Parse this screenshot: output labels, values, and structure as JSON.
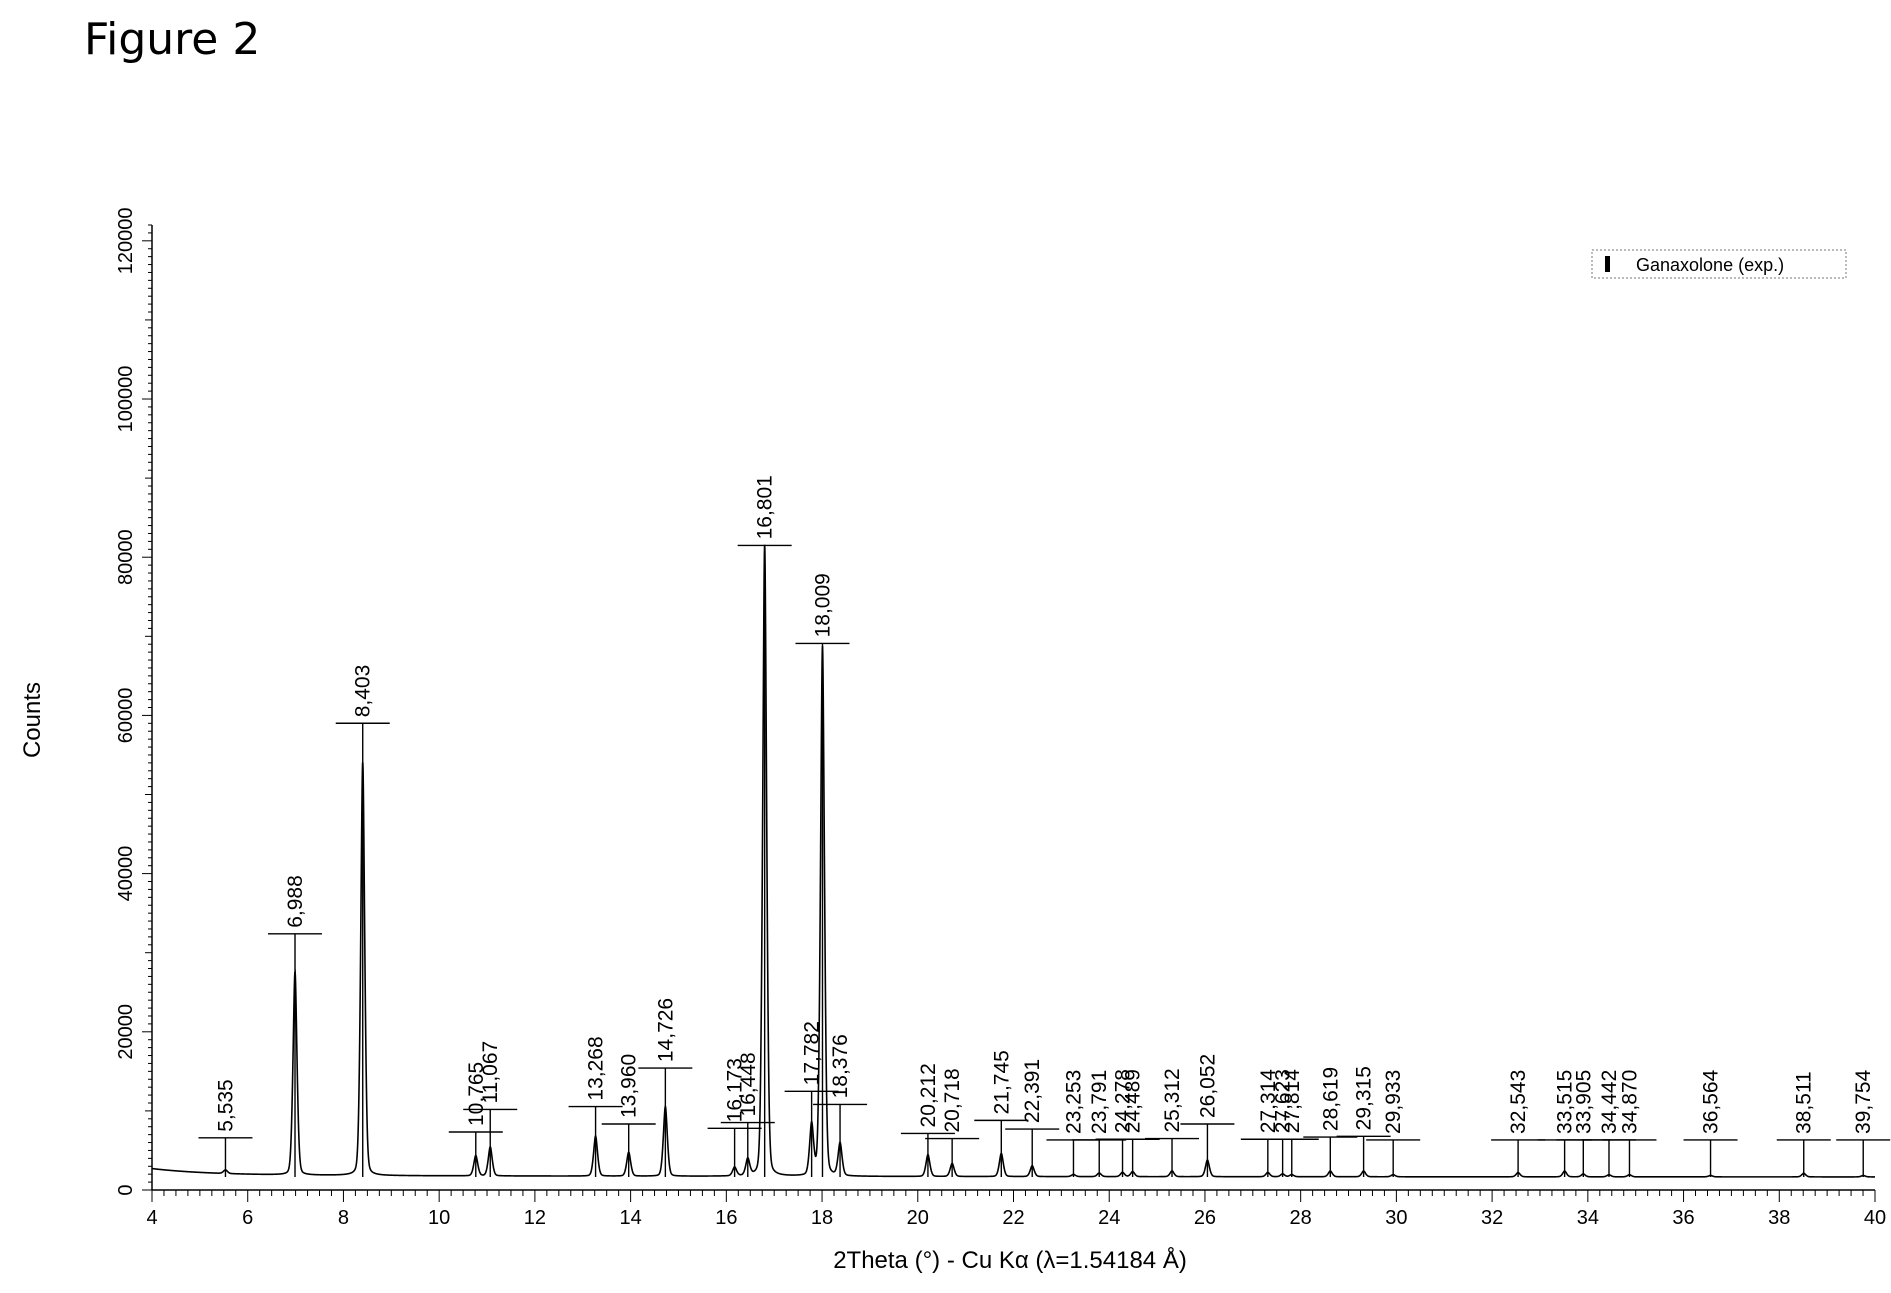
{
  "figure_label": "Figure 2",
  "chart_data": {
    "type": "line",
    "title": "",
    "xlabel": "2Theta (°) - Cu Kα (λ=1.54184 Å)",
    "ylabel": "Counts",
    "xlim": [
      4,
      40
    ],
    "ylim": [
      0,
      122000
    ],
    "x_ticks": [
      4,
      6,
      8,
      10,
      12,
      14,
      16,
      18,
      20,
      22,
      24,
      26,
      28,
      30,
      32,
      34,
      36,
      38,
      40
    ],
    "y_ticks": [
      0,
      20000,
      40000,
      60000,
      80000,
      100000,
      120000
    ],
    "legend": {
      "placement": "top-right",
      "entries": [
        "Ganaxolone (exp.)"
      ]
    },
    "grid": false,
    "series": [
      {
        "name": "Ganaxolone (exp.)",
        "peaks": [
          {
            "x": 5.535,
            "label": "5,535",
            "height": 500,
            "tick": 5400
          },
          {
            "x": 6.988,
            "label": "6,988",
            "height": 28000,
            "tick": 33500
          },
          {
            "x": 8.403,
            "label": "8,403",
            "height": 57000,
            "tick": 62500
          },
          {
            "x": 10.765,
            "label": "10,765",
            "height": 2800,
            "tick": 6200
          },
          {
            "x": 11.067,
            "label": "11,067",
            "height": 4000,
            "tick": 9300
          },
          {
            "x": 13.268,
            "label": "13,268",
            "height": 5500,
            "tick": 9700
          },
          {
            "x": 13.96,
            "label": "13,960",
            "height": 3300,
            "tick": 7300
          },
          {
            "x": 14.726,
            "label": "14,726",
            "height": 9600,
            "tick": 15000
          },
          {
            "x": 16.173,
            "label": "16,173",
            "height": 1200,
            "tick": 6700
          },
          {
            "x": 16.448,
            "label": "16,448",
            "height": 2300,
            "tick": 7500
          },
          {
            "x": 16.801,
            "label": "16,801",
            "height": 87000,
            "tick": 87000
          },
          {
            "x": 17.782,
            "label": "17,782",
            "height": 7000,
            "tick": 11800
          },
          {
            "x": 18.009,
            "label": "18,009",
            "height": 73000,
            "tick": 73500
          },
          {
            "x": 18.376,
            "label": "18,376",
            "height": 4500,
            "tick": 10000
          },
          {
            "x": 20.212,
            "label": "20,212",
            "height": 3000,
            "tick": 6000
          },
          {
            "x": 20.718,
            "label": "20,718",
            "height": 1800,
            "tick": 5300
          },
          {
            "x": 21.745,
            "label": "21,745",
            "height": 3200,
            "tick": 7800
          },
          {
            "x": 22.391,
            "label": "22,391",
            "height": 1500,
            "tick": 6600
          },
          {
            "x": 23.253,
            "label": "23,253",
            "height": 300,
            "tick": 5100
          },
          {
            "x": 23.791,
            "label": "23,791",
            "height": 500,
            "tick": 5100
          },
          {
            "x": 24.278,
            "label": "24,278",
            "height": 600,
            "tick": 5200
          },
          {
            "x": 24.489,
            "label": "24,489",
            "height": 700,
            "tick": 5200
          },
          {
            "x": 25.312,
            "label": "25,312",
            "height": 800,
            "tick": 5300
          },
          {
            "x": 26.052,
            "label": "26,052",
            "height": 2300,
            "tick": 7300
          },
          {
            "x": 27.314,
            "label": "27,314",
            "height": 600,
            "tick": 5200
          },
          {
            "x": 27.623,
            "label": "27,623",
            "height": 400,
            "tick": 5200
          },
          {
            "x": 27.814,
            "label": "27,814",
            "height": 300,
            "tick": 5200
          },
          {
            "x": 28.619,
            "label": "28,619",
            "height": 800,
            "tick": 5500
          },
          {
            "x": 29.315,
            "label": "29,315",
            "height": 800,
            "tick": 5600
          },
          {
            "x": 29.933,
            "label": "29,933",
            "height": 300,
            "tick": 5100
          },
          {
            "x": 32.543,
            "label": "32,543",
            "height": 600,
            "tick": 5100
          },
          {
            "x": 33.515,
            "label": "33,515",
            "height": 800,
            "tick": 5100
          },
          {
            "x": 33.905,
            "label": "33,905",
            "height": 400,
            "tick": 5100
          },
          {
            "x": 34.442,
            "label": "34,442",
            "height": 300,
            "tick": 5100
          },
          {
            "x": 34.87,
            "label": "34,870",
            "height": 300,
            "tick": 5100
          },
          {
            "x": 36.564,
            "label": "36,564",
            "height": 200,
            "tick": 5100
          },
          {
            "x": 38.511,
            "label": "38,511",
            "height": 500,
            "tick": 5100
          },
          {
            "x": 39.754,
            "label": "39,754",
            "height": 200,
            "tick": 5100
          }
        ]
      }
    ]
  }
}
